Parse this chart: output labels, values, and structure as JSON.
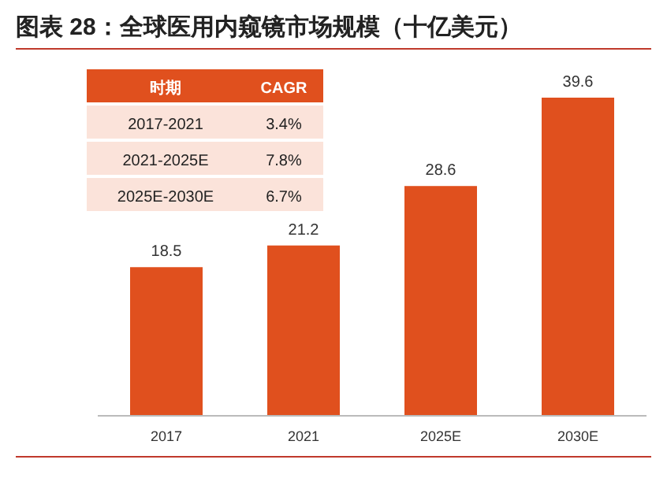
{
  "chart_data": {
    "type": "bar",
    "title": "图表 28：全球医用内窥镜市场规模（十亿美元）",
    "categories": [
      "2017",
      "2021",
      "2025E",
      "2030E"
    ],
    "values": [
      18.5,
      21.2,
      28.6,
      39.6
    ],
    "color": "#e0501e",
    "data_labels": true,
    "annotations": [
      "时期",
      "CAGR",
      "2017-2021",
      "3.4%",
      "2021-2025E",
      "7.8%",
      "2025E-2030E",
      "6.7%"
    ]
  }
}
